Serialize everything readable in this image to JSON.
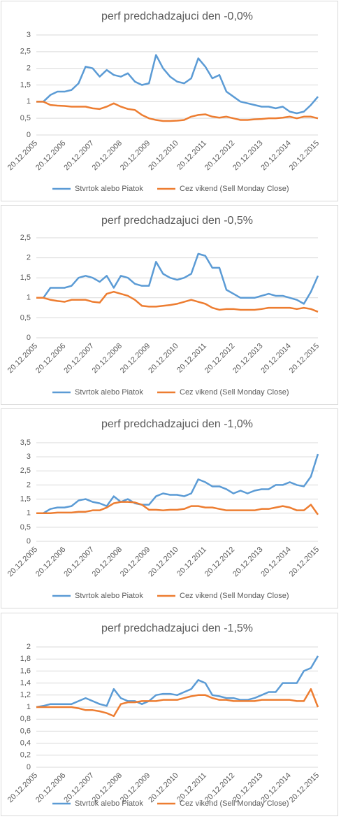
{
  "chart_data": [
    {
      "type": "line",
      "title": "perf predchadzajuci den -0,0%",
      "categories": [
        "20.12.2005",
        null,
        null,
        null,
        "20.12.2006",
        null,
        null,
        null,
        "20.12.2007",
        null,
        null,
        null,
        "20.12.2008",
        null,
        null,
        null,
        "20.12.2009",
        null,
        null,
        null,
        "20.12.2010",
        null,
        null,
        null,
        "20.12.2011",
        null,
        null,
        null,
        "20.12.2012",
        null,
        null,
        null,
        "20.12.2013",
        null,
        null,
        null,
        "20.12.2014",
        null,
        null,
        null,
        "20.12.2015"
      ],
      "series": [
        {
          "name": "Stvrtok alebo Piatok",
          "color": "#5b9bd5",
          "values": [
            1.0,
            1.0,
            1.2,
            1.3,
            1.3,
            1.35,
            1.55,
            2.05,
            2.0,
            1.75,
            1.95,
            1.8,
            1.75,
            1.85,
            1.6,
            1.5,
            1.55,
            2.4,
            2.0,
            1.75,
            1.6,
            1.55,
            1.7,
            2.3,
            2.05,
            1.7,
            1.8,
            1.3,
            1.15,
            1.0,
            0.95,
            0.9,
            0.85,
            0.85,
            0.8,
            0.85,
            0.7,
            0.65,
            0.7,
            0.9,
            1.15
          ]
        },
        {
          "name": "Cez vikend (Sell Monday Close)",
          "color": "#ed7d31",
          "values": [
            1.0,
            1.0,
            0.9,
            0.88,
            0.87,
            0.85,
            0.85,
            0.85,
            0.8,
            0.78,
            0.85,
            0.95,
            0.85,
            0.78,
            0.75,
            0.6,
            0.5,
            0.45,
            0.42,
            0.42,
            0.43,
            0.45,
            0.55,
            0.6,
            0.62,
            0.55,
            0.52,
            0.55,
            0.5,
            0.45,
            0.45,
            0.47,
            0.48,
            0.5,
            0.5,
            0.52,
            0.55,
            0.5,
            0.55,
            0.55,
            0.5
          ]
        }
      ],
      "ylim": [
        0,
        3
      ],
      "yticks": [
        0,
        {
          "value": 0.5,
          "label": "0,5"
        },
        1,
        {
          "value": 1.5,
          "label": "1,5"
        },
        2,
        {
          "value": 2.5,
          "label": "2,5"
        },
        3
      ],
      "grid": true,
      "legend": "bottom"
    },
    {
      "type": "line",
      "title": "perf predchadzajuci den -0,5%",
      "categories": [
        "20.12.2005",
        null,
        null,
        null,
        "20.12.2006",
        null,
        null,
        null,
        "20.12.2007",
        null,
        null,
        null,
        "20.12.2008",
        null,
        null,
        null,
        "20.12.2009",
        null,
        null,
        null,
        "20.12.2010",
        null,
        null,
        null,
        "20.12.2011",
        null,
        null,
        null,
        "20.12.2012",
        null,
        null,
        null,
        "20.12.2013",
        null,
        null,
        null,
        "20.12.2014",
        null,
        null,
        null,
        "20.12.2015"
      ],
      "series": [
        {
          "name": "Stvrtok alebo Piatok",
          "color": "#5b9bd5",
          "values": [
            1.0,
            1.0,
            1.25,
            1.25,
            1.25,
            1.3,
            1.5,
            1.55,
            1.5,
            1.4,
            1.55,
            1.25,
            1.55,
            1.5,
            1.35,
            1.3,
            1.3,
            1.9,
            1.6,
            1.5,
            1.45,
            1.5,
            1.6,
            2.1,
            2.05,
            1.75,
            1.75,
            1.2,
            1.1,
            1.0,
            1.0,
            1.0,
            1.05,
            1.1,
            1.05,
            1.05,
            1.0,
            0.95,
            0.85,
            1.15,
            1.55
          ]
        },
        {
          "name": "Cez vikend (Sell Monday Close)",
          "color": "#ed7d31",
          "values": [
            1.0,
            1.0,
            0.95,
            0.92,
            0.9,
            0.95,
            0.95,
            0.95,
            0.9,
            0.88,
            1.1,
            1.15,
            1.1,
            1.05,
            0.95,
            0.8,
            0.78,
            0.78,
            0.8,
            0.82,
            0.85,
            0.9,
            0.95,
            0.9,
            0.85,
            0.75,
            0.7,
            0.72,
            0.72,
            0.7,
            0.7,
            0.7,
            0.72,
            0.75,
            0.75,
            0.75,
            0.75,
            0.72,
            0.75,
            0.72,
            0.65
          ]
        }
      ],
      "ylim": [
        0,
        2.5
      ],
      "yticks": [
        0,
        {
          "value": 0.5,
          "label": "0,5"
        },
        1,
        {
          "value": 1.5,
          "label": "1,5"
        },
        2,
        {
          "value": 2.5,
          "label": "2,5"
        }
      ],
      "grid": true,
      "legend": "bottom"
    },
    {
      "type": "line",
      "title": "perf predchadzajuci den -1,0%",
      "categories": [
        "20.12.2005",
        null,
        null,
        null,
        "20.12.2006",
        null,
        null,
        null,
        "20.12.2007",
        null,
        null,
        null,
        "20.12.2008",
        null,
        null,
        null,
        "20.12.2009",
        null,
        null,
        null,
        "20.12.2010",
        null,
        null,
        null,
        "20.12.2011",
        null,
        null,
        null,
        "20.12.2012",
        null,
        null,
        null,
        "20.12.2013",
        null,
        null,
        null,
        "20.12.2014",
        null,
        null,
        null,
        "20.12.2015"
      ],
      "series": [
        {
          "name": "Stvrtok alebo Piatok",
          "color": "#5b9bd5",
          "values": [
            1.0,
            1.0,
            1.15,
            1.2,
            1.2,
            1.25,
            1.45,
            1.5,
            1.4,
            1.35,
            1.25,
            1.6,
            1.4,
            1.5,
            1.35,
            1.3,
            1.3,
            1.6,
            1.7,
            1.65,
            1.65,
            1.6,
            1.7,
            2.2,
            2.1,
            1.95,
            1.95,
            1.85,
            1.7,
            1.8,
            1.7,
            1.8,
            1.85,
            1.85,
            2.0,
            2.0,
            2.1,
            2.0,
            1.95,
            2.3,
            3.1
          ]
        },
        {
          "name": "Cez vikend (Sell Monday Close)",
          "color": "#ed7d31",
          "values": [
            1.0,
            1.0,
            1.0,
            1.02,
            1.02,
            1.02,
            1.05,
            1.05,
            1.1,
            1.1,
            1.2,
            1.35,
            1.4,
            1.4,
            1.38,
            1.3,
            1.12,
            1.12,
            1.1,
            1.12,
            1.12,
            1.15,
            1.25,
            1.25,
            1.2,
            1.2,
            1.15,
            1.1,
            1.1,
            1.1,
            1.1,
            1.1,
            1.15,
            1.15,
            1.2,
            1.25,
            1.2,
            1.1,
            1.1,
            1.3,
            0.95
          ]
        }
      ],
      "ylim": [
        0,
        3.5
      ],
      "yticks": [
        0,
        {
          "value": 0.5,
          "label": "0,5"
        },
        1,
        {
          "value": 1.5,
          "label": "1,5"
        },
        2,
        {
          "value": 2.5,
          "label": "2,5"
        },
        3,
        {
          "value": 3.5,
          "label": "3,5"
        }
      ],
      "grid": true,
      "legend": "bottom"
    },
    {
      "type": "line",
      "title": "perf predchadzajuci den -1,5%",
      "categories": [
        "20.12.2005",
        null,
        null,
        null,
        "20.12.2006",
        null,
        null,
        null,
        "20.12.2007",
        null,
        null,
        null,
        "20.12.2008",
        null,
        null,
        null,
        "20.12.2009",
        null,
        null,
        null,
        "20.12.2010",
        null,
        null,
        null,
        "20.12.2011",
        null,
        null,
        null,
        "20.12.2012",
        null,
        null,
        null,
        "20.12.2013",
        null,
        null,
        null,
        "20.12.2014",
        null,
        null,
        null,
        "20.12.2015"
      ],
      "series": [
        {
          "name": "Stvrtok alebo Piatok",
          "color": "#5b9bd5",
          "values": [
            1.0,
            1.02,
            1.05,
            1.05,
            1.05,
            1.05,
            1.1,
            1.15,
            1.1,
            1.05,
            1.02,
            1.3,
            1.15,
            1.1,
            1.1,
            1.05,
            1.1,
            1.2,
            1.22,
            1.22,
            1.2,
            1.25,
            1.3,
            1.45,
            1.4,
            1.2,
            1.18,
            1.15,
            1.15,
            1.12,
            1.12,
            1.15,
            1.2,
            1.25,
            1.25,
            1.4,
            1.4,
            1.4,
            1.6,
            1.65,
            1.85
          ]
        },
        {
          "name": "Cez vikend (Sell Monday Close)",
          "color": "#ed7d31",
          "values": [
            1.0,
            1.0,
            1.0,
            1.0,
            1.0,
            1.0,
            0.98,
            0.95,
            0.95,
            0.93,
            0.9,
            0.85,
            1.05,
            1.08,
            1.08,
            1.1,
            1.1,
            1.1,
            1.12,
            1.12,
            1.12,
            1.15,
            1.18,
            1.2,
            1.2,
            1.15,
            1.12,
            1.12,
            1.1,
            1.1,
            1.1,
            1.1,
            1.12,
            1.12,
            1.12,
            1.12,
            1.12,
            1.1,
            1.1,
            1.3,
            1.0
          ]
        }
      ],
      "ylim": [
        0,
        2
      ],
      "yticks": [
        0,
        {
          "value": 0.2,
          "label": "0,2"
        },
        {
          "value": 0.4,
          "label": "0,4"
        },
        {
          "value": 0.6,
          "label": "0,6"
        },
        {
          "value": 0.8,
          "label": "0,8"
        },
        1,
        {
          "value": 1.2,
          "label": "1,2"
        },
        {
          "value": 1.4,
          "label": "1,4"
        },
        {
          "value": 1.6,
          "label": "1,6"
        },
        {
          "value": 1.8,
          "label": "1,8"
        },
        2
      ],
      "grid": true,
      "legend": "bottom"
    }
  ]
}
